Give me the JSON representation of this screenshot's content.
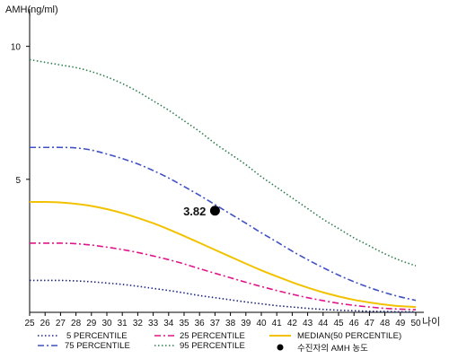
{
  "chart_data": {
    "type": "line",
    "ylabel": "AMH(ng/ml)",
    "xlabel": "나이",
    "x": [
      25,
      26,
      27,
      28,
      29,
      30,
      31,
      32,
      33,
      34,
      35,
      36,
      37,
      38,
      39,
      40,
      41,
      42,
      43,
      44,
      45,
      46,
      47,
      48,
      49,
      50
    ],
    "xlim": [
      25,
      50
    ],
    "ylim": [
      0,
      11
    ],
    "yticks": [
      5,
      10
    ],
    "grid": false,
    "legend_position": "bottom",
    "series": [
      {
        "name": "5 PERCENTILE",
        "color": "#1a237e",
        "dash": "dotted",
        "values": [
          1.2,
          1.2,
          1.2,
          1.18,
          1.15,
          1.1,
          1.05,
          0.98,
          0.9,
          0.82,
          0.73,
          0.63,
          0.55,
          0.47,
          0.39,
          0.32,
          0.25,
          0.2,
          0.15,
          0.11,
          0.08,
          0.06,
          0.04,
          0.03,
          0.02,
          0.02
        ]
      },
      {
        "name": "25 PERCENTILE",
        "color": "#e0158a",
        "dash": "dashdot",
        "values": [
          2.6,
          2.6,
          2.6,
          2.58,
          2.53,
          2.45,
          2.36,
          2.25,
          2.12,
          1.98,
          1.82,
          1.64,
          1.47,
          1.3,
          1.13,
          0.97,
          0.82,
          0.68,
          0.55,
          0.44,
          0.34,
          0.26,
          0.2,
          0.15,
          0.12,
          0.1
        ]
      },
      {
        "name": "MEDIAN(50 PERCENTILE)",
        "color": "#f2c200",
        "dash": "solid",
        "values": [
          4.15,
          4.15,
          4.13,
          4.08,
          4.0,
          3.88,
          3.73,
          3.55,
          3.35,
          3.12,
          2.87,
          2.61,
          2.35,
          2.09,
          1.83,
          1.58,
          1.35,
          1.13,
          0.93,
          0.75,
          0.6,
          0.47,
          0.37,
          0.29,
          0.23,
          0.2
        ]
      },
      {
        "name": "75 PERCENTILE",
        "color": "#3f51c4",
        "dash": "dashdot",
        "values": [
          6.2,
          6.2,
          6.2,
          6.18,
          6.1,
          5.95,
          5.78,
          5.58,
          5.33,
          5.05,
          4.73,
          4.4,
          4.05,
          3.7,
          3.35,
          2.99,
          2.65,
          2.3,
          1.98,
          1.68,
          1.4,
          1.15,
          0.93,
          0.74,
          0.58,
          0.45
        ]
      },
      {
        "name": "95 PERCENTILE",
        "color": "#2e7d4f",
        "dash": "dotted",
        "values": [
          9.5,
          9.4,
          9.3,
          9.2,
          9.05,
          8.85,
          8.6,
          8.3,
          7.95,
          7.6,
          7.2,
          6.8,
          6.35,
          5.95,
          5.55,
          5.1,
          4.7,
          4.3,
          3.9,
          3.5,
          3.15,
          2.8,
          2.5,
          2.2,
          1.95,
          1.75
        ]
      }
    ],
    "annotations": [
      {
        "label": "3.82",
        "x": 37,
        "y": 3.82,
        "name": "수진자의 AMH 농도",
        "color": "#000000"
      }
    ]
  }
}
